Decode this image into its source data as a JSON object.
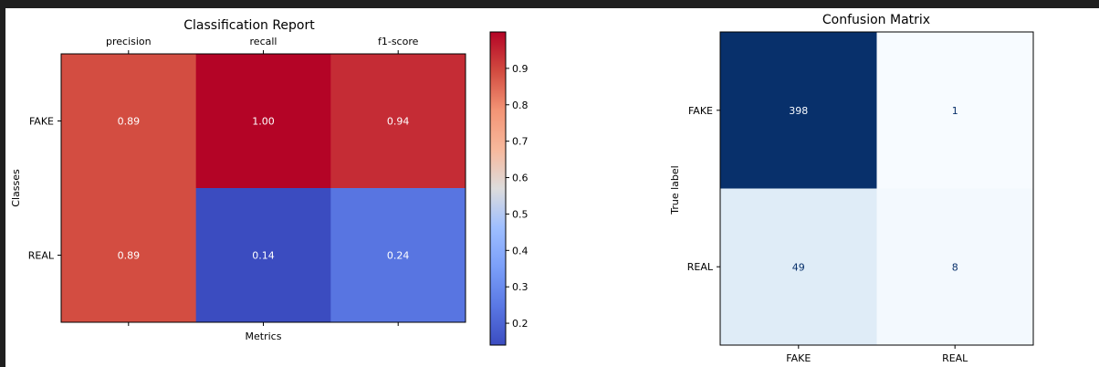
{
  "chart_data": [
    {
      "type": "heatmap",
      "title": "Classification Report",
      "xlabel": "Metrics",
      "ylabel": "Classes",
      "x_categories": [
        "precision",
        "recall",
        "f1-score"
      ],
      "y_categories": [
        "FAKE",
        "REAL"
      ],
      "values": [
        [
          0.89,
          1.0,
          0.94
        ],
        [
          0.89,
          0.14,
          0.24
        ]
      ],
      "value_labels": [
        [
          "0.89",
          "1.00",
          "0.94"
        ],
        [
          "0.89",
          "0.14",
          "0.24"
        ]
      ],
      "colormap": "coolwarm",
      "vmin": 0.14,
      "vmax": 1.0,
      "colorbar_ticks": [
        0.2,
        0.3,
        0.4,
        0.5,
        0.6,
        0.7,
        0.8,
        0.9
      ],
      "colorbar_tick_labels": [
        "0.2",
        "0.3",
        "0.4",
        "0.5",
        "0.6",
        "0.7",
        "0.8",
        "0.9"
      ]
    },
    {
      "type": "heatmap",
      "title": "Confusion Matrix",
      "xlabel": "",
      "ylabel": "True label",
      "x_categories": [
        "FAKE",
        "REAL"
      ],
      "y_categories": [
        "FAKE",
        "REAL"
      ],
      "values": [
        [
          398,
          1
        ],
        [
          49,
          8
        ]
      ],
      "value_labels": [
        [
          "398",
          "1"
        ],
        [
          "49",
          "8"
        ]
      ],
      "colormap": "Blues",
      "vmin": 1,
      "vmax": 398
    }
  ]
}
